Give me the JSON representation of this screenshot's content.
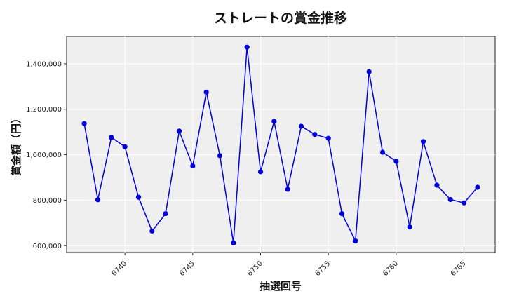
{
  "chart_data": {
    "type": "line",
    "title": "ストレートの賞金推移",
    "xlabel": "抽選回号",
    "ylabel": "賞金額（円）",
    "xlim": [
      6735.7,
      6767.3
    ],
    "ylim": [
      570000,
      1520000
    ],
    "x_ticks": [
      6740,
      6745,
      6750,
      6755,
      6760,
      6765
    ],
    "y_ticks": [
      600000,
      800000,
      1000000,
      1200000,
      1400000
    ],
    "y_tick_labels": [
      "600,000",
      "800,000",
      "1,000,000",
      "1,200,000",
      "1,400,000"
    ],
    "grid": true,
    "series": [
      {
        "color": "#0000dd",
        "x": [
          6737,
          6738,
          6739,
          6740,
          6741,
          6742,
          6743,
          6744,
          6745,
          6746,
          6747,
          6748,
          6749,
          6750,
          6751,
          6752,
          6753,
          6754,
          6755,
          6756,
          6757,
          6758,
          6759,
          6760,
          6761,
          6762,
          6763,
          6764,
          6765,
          6766
        ],
        "y": [
          1137000,
          802000,
          1076000,
          1035000,
          813000,
          664000,
          741000,
          1104000,
          951000,
          1275000,
          996000,
          612000,
          1473000,
          925000,
          1147000,
          848000,
          1125000,
          1089000,
          1072000,
          741000,
          621000,
          1365000,
          1011000,
          971000,
          682000,
          1058000,
          866000,
          803000,
          788000,
          857000
        ]
      }
    ]
  }
}
